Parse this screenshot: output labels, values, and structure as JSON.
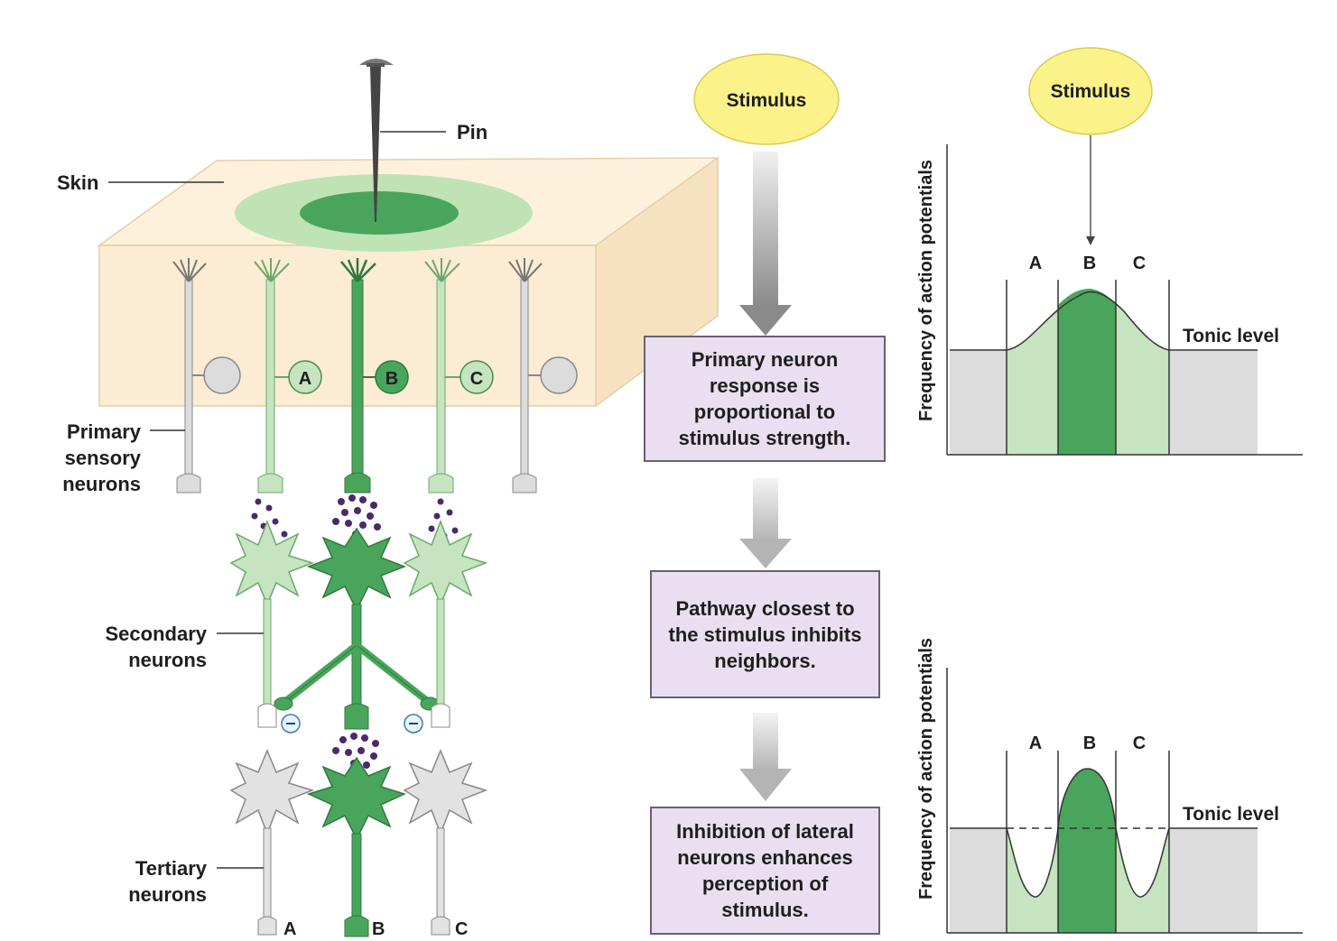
{
  "labels": {
    "pin": "Pin",
    "skin": "Skin",
    "primary": [
      "Primary",
      "sensory",
      "neurons"
    ],
    "secondary": [
      "Secondary",
      "neurons"
    ],
    "tertiary": [
      "Tertiary",
      "neurons"
    ],
    "pathway_a": "A",
    "pathway_b": "B",
    "pathway_c": "C"
  },
  "flow": {
    "stimulus": "Stimulus",
    "step1": "Primary neuron response is proportional to stimulus strength.",
    "step2": "Pathway closest to the stimulus inhibits neighbors.",
    "step3": "Inhibition of lateral neurons enhances perception of stimulus."
  },
  "graphs": {
    "top": {
      "stimulus": "Stimulus",
      "ylabel": "Frequency of action potentials",
      "regions": [
        "A",
        "B",
        "C"
      ],
      "tonic": "Tonic level"
    },
    "bottom": {
      "ylabel": "Frequency of action potentials",
      "regions": [
        "A",
        "B",
        "C"
      ],
      "tonic": "Tonic level"
    }
  },
  "colors": {
    "skin": "#fbecd3",
    "light_green": "#c5e4bf",
    "dark_green": "#4aa55c",
    "gray_neuron": "#dcdcdc",
    "box": "#eadff0",
    "stimulus": "#fbf28a",
    "vesicle": "#4a2a6a"
  }
}
